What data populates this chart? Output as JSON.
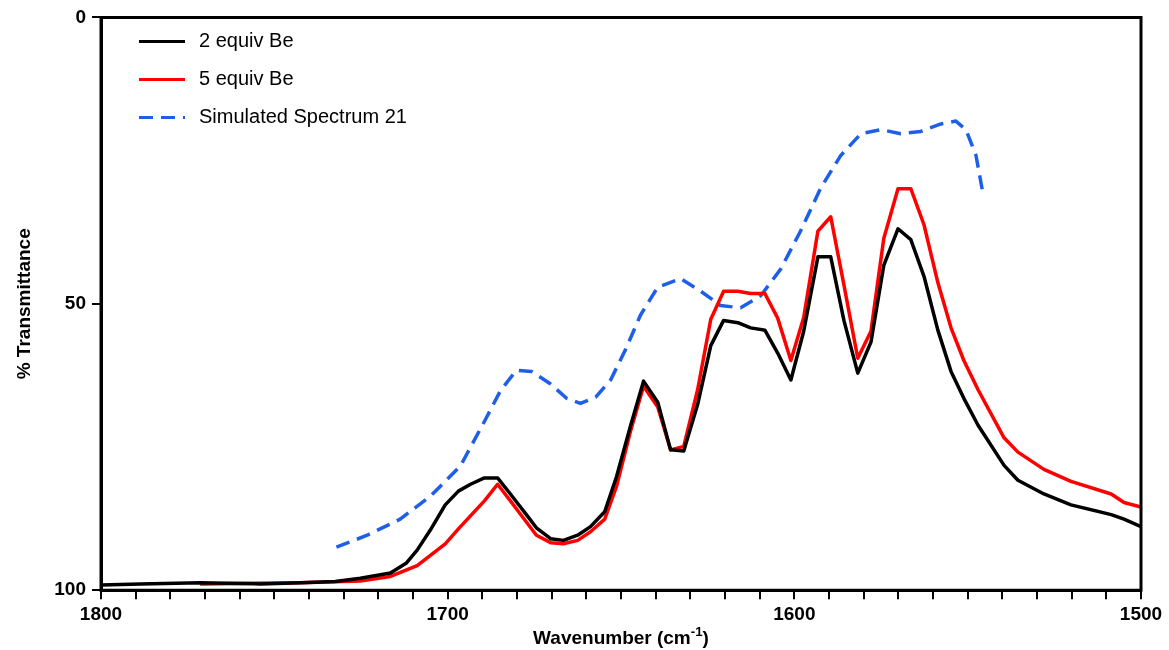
{
  "chart_data": {
    "type": "line",
    "xlabel": "Wavenumber (cm$^{-1}$)",
    "ylabel": "% Transmittance",
    "xlim": [
      1800,
      1500
    ],
    "ylim": [
      100,
      0
    ],
    "xticks": [
      1800,
      {
        "value": 1790,
        "label": null
      },
      {
        "value": 1780,
        "label": null
      },
      {
        "value": 1770,
        "label": null
      },
      {
        "value": 1760,
        "label": null
      },
      {
        "value": 1750,
        "label": null
      },
      {
        "value": 1740,
        "label": null
      },
      {
        "value": 1730,
        "label": null
      },
      {
        "value": 1720,
        "label": null
      },
      {
        "value": 1710,
        "label": null
      },
      1700,
      {
        "value": 1690,
        "label": null
      },
      {
        "value": 1680,
        "label": null
      },
      {
        "value": 1670,
        "label": null
      },
      {
        "value": 1660,
        "label": null
      },
      {
        "value": 1650,
        "label": null
      },
      {
        "value": 1640,
        "label": null
      },
      {
        "value": 1630,
        "label": null
      },
      {
        "value": 1620,
        "label": null
      },
      {
        "value": 1610,
        "label": null
      },
      1600,
      {
        "value": 1590,
        "label": null
      },
      {
        "value": 1580,
        "label": null
      },
      {
        "value": 1570,
        "label": null
      },
      {
        "value": 1560,
        "label": null
      },
      {
        "value": 1550,
        "label": null
      },
      {
        "value": 1540,
        "label": null
      },
      {
        "value": 1530,
        "label": null
      },
      {
        "value": 1520,
        "label": null
      },
      {
        "value": 1510,
        "label": null
      },
      1500
    ],
    "yticks": [
      0,
      50,
      100
    ],
    "grid": false,
    "legend": "top left",
    "marker": "none",
    "series": [
      {
        "name": "2 equiv Be",
        "color": "#000000",
        "line_style": "solid",
        "x": [
          1800,
          1788.7,
          1771.4,
          1754,
          1742.5,
          1732.4,
          1725.2,
          1716.5,
          1712,
          1708.8,
          1705,
          1700.7,
          1696.9,
          1693.4,
          1689.4,
          1685.6,
          1681.9,
          1677.3,
          1674.4,
          1670.3,
          1666.6,
          1662.5,
          1658.8,
          1654.7,
          1651.3,
          1647.2,
          1643.5,
          1639.4,
          1635.7,
          1631.9,
          1627.9,
          1624.1,
          1620.4,
          1616.3,
          1612.6,
          1608.5,
          1604.8,
          1601,
          1597.3,
          1593.2,
          1589.5,
          1585.7,
          1581.7,
          1577.9,
          1574.2,
          1570.1,
          1566.4,
          1562.6,
          1558.6,
          1554.8,
          1551.1,
          1547,
          1539.5,
          1535.5,
          1528,
          1520.2,
          1508.6,
          1504.9,
          1500
        ],
        "values": [
          99.1,
          98.9,
          98.7,
          98.9,
          98.7,
          98.5,
          97.9,
          97,
          95.3,
          93,
          89.5,
          85.1,
          82.7,
          81.5,
          80.4,
          80.4,
          83.2,
          86.8,
          89.1,
          91,
          91.3,
          90.4,
          88.9,
          86.3,
          80.2,
          71.2,
          63.5,
          67.2,
          75.5,
          75.7,
          67.6,
          57.3,
          52.9,
          53.3,
          54.2,
          54.6,
          58.6,
          63.3,
          54.8,
          41.8,
          41.8,
          52.9,
          62.1,
          56.7,
          43.3,
          36.9,
          38.8,
          45.2,
          54.6,
          61.8,
          66.5,
          71.2,
          78.2,
          80.8,
          83.2,
          85.1,
          86.8,
          87.6,
          88.9
        ]
      },
      {
        "name": "5 equiv Be",
        "color": "#ff0000",
        "line_style": "solid",
        "x": [
          1771.4,
          1742.5,
          1725.2,
          1716.5,
          1708.8,
          1700.7,
          1696.9,
          1689.4,
          1685.6,
          1681.9,
          1677.3,
          1674.4,
          1670.3,
          1666.6,
          1662.5,
          1658.8,
          1654.7,
          1651.3,
          1647.2,
          1643.5,
          1639.4,
          1635.7,
          1631.9,
          1627.9,
          1624.1,
          1620.4,
          1616.3,
          1612.6,
          1608.5,
          1604.8,
          1601,
          1597.3,
          1593.2,
          1589.5,
          1585.7,
          1581.7,
          1577.9,
          1574.2,
          1570.1,
          1566.4,
          1562.6,
          1558.6,
          1554.8,
          1551.1,
          1547,
          1539.5,
          1535.5,
          1528,
          1520.2,
          1508.6,
          1504.9,
          1500
        ],
        "values": [
          98.9,
          98.7,
          98.4,
          97.6,
          95.7,
          91.9,
          89.3,
          84.4,
          81.5,
          84.4,
          88.1,
          90.4,
          91.7,
          91.9,
          91.3,
          89.8,
          87.6,
          81.9,
          72.1,
          64.4,
          68,
          75.5,
          74.9,
          65,
          52.7,
          47.8,
          47.8,
          48.2,
          48.2,
          52.5,
          59.9,
          52.4,
          37.3,
          34.8,
          46.7,
          59.5,
          54.8,
          38.6,
          29.9,
          29.9,
          36.2,
          46.3,
          54.2,
          59.9,
          65,
          73.4,
          75.9,
          78.9,
          81,
          83.2,
          84.7,
          85.5
        ]
      },
      {
        "name": "Simulated Spectrum 21",
        "color": "#1f5fe8",
        "line_style": "dashed",
        "x": [
          1732.1,
          1723.2,
          1713.7,
          1705,
          1696.3,
          1689.1,
          1684.8,
          1680.2,
          1675.8,
          1670.3,
          1665.7,
          1661.7,
          1657.3,
          1653,
          1648.7,
          1644.4,
          1639.4,
          1632.8,
          1627,
          1621.3,
          1615.5,
          1609.7,
          1603.9,
          1598.2,
          1592.4,
          1586.6,
          1580.8,
          1575,
          1569.3,
          1563.5,
          1557.7,
          1553.4,
          1550.5,
          1547.6,
          1545.6
        ],
        "values": [
          92.5,
          90.4,
          87.6,
          83.6,
          78.3,
          70.2,
          65.2,
          61.6,
          61.8,
          64,
          66.5,
          67.4,
          66.3,
          63.3,
          58,
          52,
          47.1,
          45.6,
          47.8,
          50.3,
          50.7,
          48.6,
          43.9,
          37.3,
          29.8,
          24.1,
          20.3,
          19.6,
          20.3,
          19.9,
          18.6,
          18.1,
          19.6,
          24.1,
          30.7
        ]
      }
    ]
  }
}
